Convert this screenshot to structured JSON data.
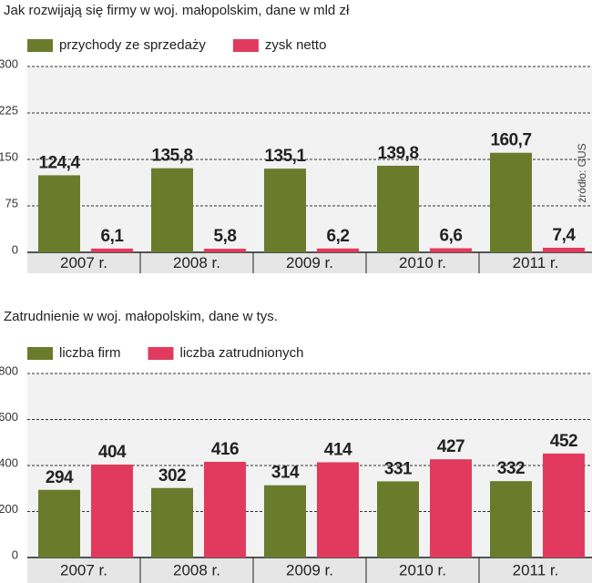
{
  "chart_data": [
    {
      "type": "bar",
      "title": "Jak rozwijają się firmy w woj. małopolskim, dane w mld zł",
      "categories": [
        "2007 r.",
        "2008 r.",
        "2009 r.",
        "2010 r.",
        "2011 r."
      ],
      "series": [
        {
          "name": "przychody ze sprzedaży",
          "color": "#6b7b2c",
          "values": [
            124.4,
            135.8,
            135.1,
            139.8,
            160.7
          ],
          "value_labels": [
            "124,4",
            "135,8",
            "135,1",
            "139,8",
            "160,7"
          ]
        },
        {
          "name": "zysk netto",
          "color": "#e23a5e",
          "values": [
            6.1,
            5.8,
            6.2,
            6.6,
            7.4
          ],
          "value_labels": [
            "6,1",
            "5,8",
            "6,2",
            "6,6",
            "7,4"
          ]
        }
      ],
      "ylim": [
        0,
        300
      ],
      "yticks": [
        0,
        75,
        150,
        225,
        300
      ],
      "grid": true,
      "annotation": "źródło: GUS"
    },
    {
      "type": "bar",
      "title": "Zatrudnienie w woj. małopolskim, dane w tys.",
      "categories": [
        "2007 r.",
        "2008 r.",
        "2009 r.",
        "2010 r.",
        "2011 r."
      ],
      "series": [
        {
          "name": "liczba firm",
          "color": "#6b7b2c",
          "values": [
            294,
            302,
            314,
            331,
            332
          ]
        },
        {
          "name": "liczba zatrudnionych",
          "color": "#e23a5e",
          "values": [
            404,
            416,
            414,
            427,
            452
          ]
        }
      ],
      "ylim": [
        0,
        800
      ],
      "yticks": [
        0,
        200,
        400,
        600,
        800
      ],
      "grid": true
    }
  ]
}
